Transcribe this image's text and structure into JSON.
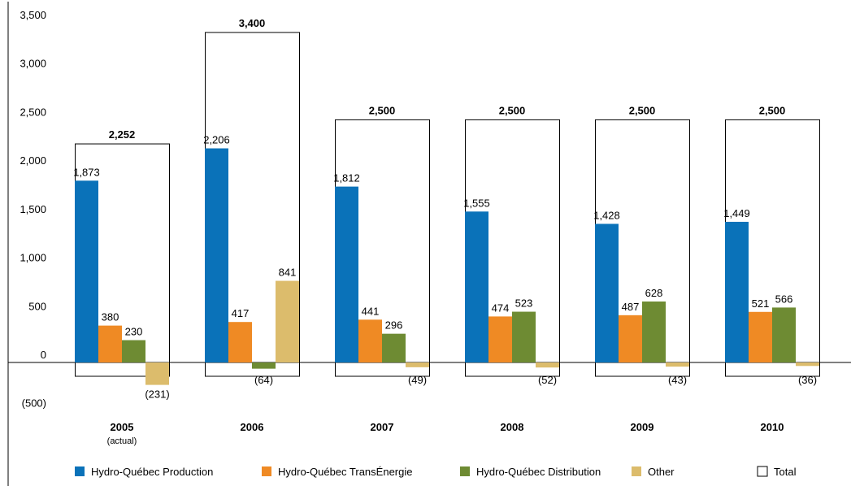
{
  "chart_data": {
    "type": "bar",
    "categories": [
      "2005",
      "2006",
      "2007",
      "2008",
      "2009",
      "2010"
    ],
    "category_sublabels": [
      "(actual)",
      "",
      "",
      "",
      "",
      ""
    ],
    "ylim": [
      -500,
      3500
    ],
    "yticks": [
      -500,
      0,
      500,
      1000,
      1500,
      2000,
      2500,
      3000,
      3500
    ],
    "ytick_labels": [
      "(500)",
      "0",
      "500",
      "1,000",
      "1,500",
      "2,000",
      "2,500",
      "3,000",
      "3,500"
    ],
    "series": [
      {
        "name": "Hydro-Québec Production",
        "color": "#0a72b9",
        "values": [
          1873,
          2206,
          1812,
          1555,
          1428,
          1449
        ],
        "labels": [
          "1,873",
          "2,206",
          "1,812",
          "1,555",
          "1,428",
          "1,449"
        ]
      },
      {
        "name": "Hydro-Québec TransÉnergie",
        "color": "#ef8a24",
        "values": [
          380,
          417,
          441,
          474,
          487,
          521
        ],
        "labels": [
          "380",
          "417",
          "441",
          "474",
          "487",
          "521"
        ]
      },
      {
        "name": "Hydro-Québec Distribution",
        "color": "#6e8b33",
        "values": [
          230,
          -64,
          296,
          523,
          628,
          566
        ],
        "labels": [
          "230",
          "(64)",
          "296",
          "523",
          "628",
          "566"
        ]
      },
      {
        "name": "Other",
        "color": "#dcbc6c",
        "values": [
          -231,
          841,
          -49,
          -52,
          -43,
          -36
        ],
        "labels": [
          "(231)",
          "841",
          "(49)",
          "(52)",
          "(43)",
          "(36)"
        ]
      }
    ],
    "total": {
      "name": "Total",
      "values": [
        2252,
        3400,
        2500,
        2500,
        2500,
        2500
      ],
      "labels": [
        "2,252",
        "3,400",
        "2,500",
        "2,500",
        "2,500",
        "2,500"
      ]
    },
    "legend": "bottom",
    "grid": false
  }
}
